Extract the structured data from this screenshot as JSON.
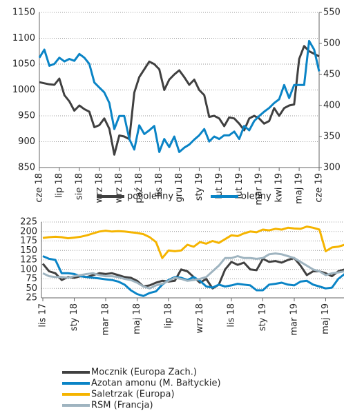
{
  "chart_data": [
    {
      "type": "line",
      "categories": [
        "cze 18",
        null,
        null,
        null,
        "lip 18",
        null,
        null,
        null,
        "sie 18",
        null,
        null,
        null,
        "wrz 18",
        null,
        null,
        null,
        "wrz 18",
        null,
        null,
        null,
        "paź 18",
        null,
        null,
        null,
        "lis 18",
        null,
        null,
        null,
        "gru 18",
        null,
        null,
        null,
        "sty 19",
        null,
        null,
        null,
        "lut 19",
        null,
        null,
        null,
        "lut 19",
        null,
        null,
        null,
        "mar 19",
        null,
        null,
        null,
        "kwi 19",
        null,
        null,
        null,
        "maj 19",
        null,
        null,
        null,
        "cze 19"
      ],
      "series": [
        {
          "name": "poliolefiny",
          "color": "#404040",
          "values": [
            1015,
            1013,
            1011,
            1010,
            1022,
            990,
            978,
            960,
            970,
            963,
            958,
            928,
            932,
            945,
            925,
            875,
            912,
            910,
            905,
            995,
            1025,
            1040,
            1055,
            1050,
            1040,
            1000,
            1020,
            1030,
            1038,
            1025,
            1010,
            1020,
            1000,
            990,
            948,
            950,
            945,
            930,
            947,
            945,
            935,
            922,
            945,
            950,
            945,
            935,
            940,
            965,
            950,
            965,
            970,
            972,
            1060,
            1085,
            1075,
            1070,
            1065
          ]
        },
        {
          "name": "olefiny",
          "color": "#0a84c6",
          "axis": "y2",
          "values": [
            477,
            490,
            464,
            467,
            477,
            471,
            475,
            472,
            483,
            477,
            467,
            437,
            429,
            421,
            404,
            362,
            383,
            383,
            346,
            329,
            368,
            354,
            360,
            367,
            325,
            346,
            333,
            350,
            325,
            332,
            337,
            345,
            352,
            362,
            342,
            350,
            346,
            352,
            352,
            358,
            346,
            367,
            360,
            375,
            383,
            390,
            396,
            404,
            410,
            433,
            412,
            433,
            433,
            433,
            504,
            490,
            455
          ]
        }
      ],
      "ylim": [
        850,
        1150
      ],
      "yticks": [
        850,
        900,
        950,
        1000,
        1050,
        1100,
        1150
      ],
      "y2lim": [
        300,
        550
      ],
      "y2ticks": [
        300,
        350,
        400,
        450,
        500,
        550
      ],
      "grid": true,
      "legend": "bottom"
    },
    {
      "type": "line",
      "categories": [
        "lis 17",
        null,
        null,
        null,
        null,
        "sty 18",
        null,
        null,
        null,
        null,
        "mar 18",
        null,
        null,
        null,
        null,
        "maj 18",
        null,
        null,
        null,
        null,
        "lip 18",
        null,
        null,
        null,
        null,
        "wrz 18",
        null,
        null,
        null,
        null,
        "lis 18",
        null,
        null,
        null,
        null,
        "sty 19",
        null,
        null,
        null,
        null,
        "mar 19",
        null,
        null,
        null,
        null,
        "maj 19",
        null,
        null,
        null,
        null
      ],
      "series": [
        {
          "name": "Mocznik (Europa Zach.)",
          "color": "#404040",
          "values": [
            115,
            95,
            90,
            72,
            80,
            78,
            82,
            80,
            85,
            90,
            88,
            90,
            85,
            80,
            78,
            70,
            55,
            58,
            65,
            70,
            68,
            70,
            100,
            95,
            80,
            65,
            75,
            50,
            60,
            100,
            120,
            112,
            118,
            100,
            98,
            128,
            120,
            122,
            118,
            125,
            130,
            110,
            85,
            95,
            95,
            90,
            82,
            95,
            100,
            118
          ]
        },
        {
          "name": "Azotan amonu (M. Bałtyckie)",
          "color": "#0a84c6",
          "values": [
            135,
            128,
            125,
            90,
            90,
            88,
            82,
            80,
            78,
            76,
            74,
            72,
            68,
            60,
            45,
            35,
            30,
            38,
            42,
            60,
            72,
            80,
            78,
            72,
            80,
            70,
            55,
            52,
            60,
            55,
            58,
            62,
            60,
            58,
            45,
            45,
            60,
            62,
            65,
            60,
            58,
            68,
            70,
            60,
            55,
            50,
            52,
            75,
            88,
            100
          ]
        },
        {
          "name": "Saletrzak (Europa)",
          "color": "#f5b400",
          "values": [
            183,
            185,
            186,
            185,
            182,
            184,
            186,
            190,
            195,
            200,
            202,
            200,
            201,
            200,
            198,
            196,
            193,
            185,
            172,
            130,
            150,
            148,
            150,
            165,
            160,
            172,
            168,
            175,
            170,
            180,
            190,
            188,
            195,
            200,
            198,
            205,
            203,
            207,
            205,
            210,
            208,
            207,
            213,
            210,
            205,
            148,
            158,
            160,
            165,
            168
          ]
        },
        {
          "name": "RSM (Francja)",
          "color": "#9fb4c0",
          "values": [
            90,
            82,
            80,
            80,
            78,
            82,
            85,
            88,
            90,
            85,
            82,
            82,
            80,
            75,
            72,
            65,
            55,
            50,
            58,
            62,
            70,
            78,
            75,
            70,
            72,
            75,
            80,
            95,
            110,
            130,
            130,
            135,
            130,
            130,
            128,
            130,
            140,
            142,
            140,
            135,
            130,
            120,
            110,
            100,
            95,
            85,
            90,
            92,
            95,
            98
          ]
        }
      ],
      "ylim": [
        25,
        225
      ],
      "yticks": [
        25,
        50,
        75,
        100,
        125,
        150,
        175,
        200,
        225
      ],
      "grid": true,
      "legend": "bottom"
    }
  ]
}
